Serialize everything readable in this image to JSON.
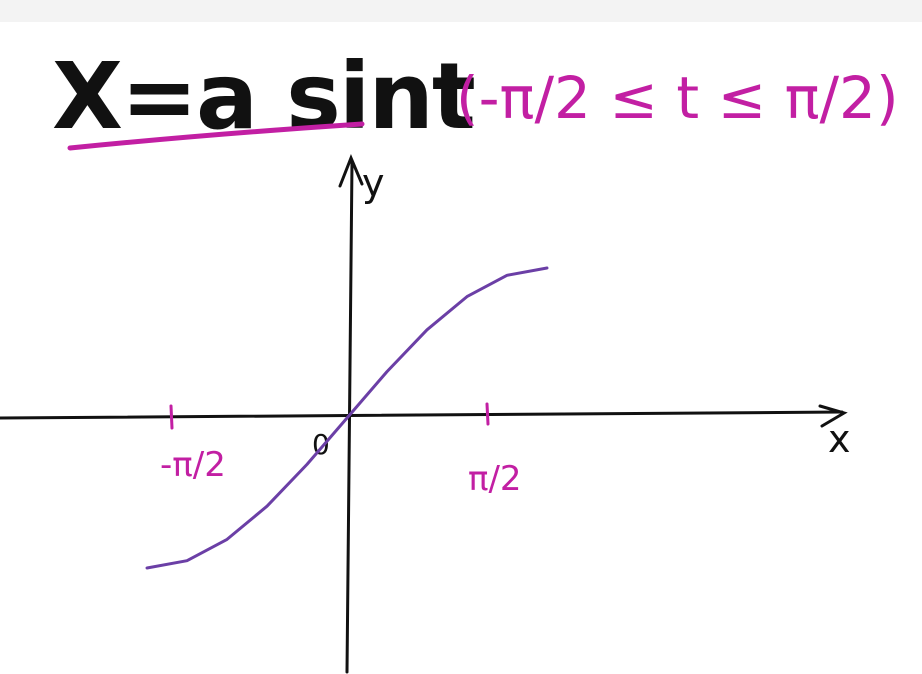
{
  "colors": {
    "ink": "#111111",
    "accent": "#c21fa3",
    "curve": "#6b3fa6",
    "topbar": "#f3f3f3"
  },
  "title": {
    "equation": "X=a sint",
    "domain": "(-π/2 ≤ t ≤ π/2)"
  },
  "axes": {
    "x_label": "x",
    "y_label": "y",
    "origin_label": "0",
    "tick_left": "-π/2",
    "tick_right": "π/2"
  },
  "chart_data": {
    "type": "line",
    "function": "x = a sin t",
    "x_label": "x",
    "y_label": "y",
    "t_range": [
      -1.5708,
      1.5708
    ],
    "series": [
      {
        "x": [
          -1.5708,
          -1.2566,
          -0.9425,
          -0.6283,
          -0.3142,
          0,
          0.3142,
          0.6283,
          0.9425,
          1.2566,
          1.5708
        ],
        "y": [
          -1,
          -0.9511,
          -0.809,
          -0.5878,
          -0.309,
          0,
          0.309,
          0.5878,
          0.809,
          0.9511,
          1
        ]
      }
    ]
  }
}
